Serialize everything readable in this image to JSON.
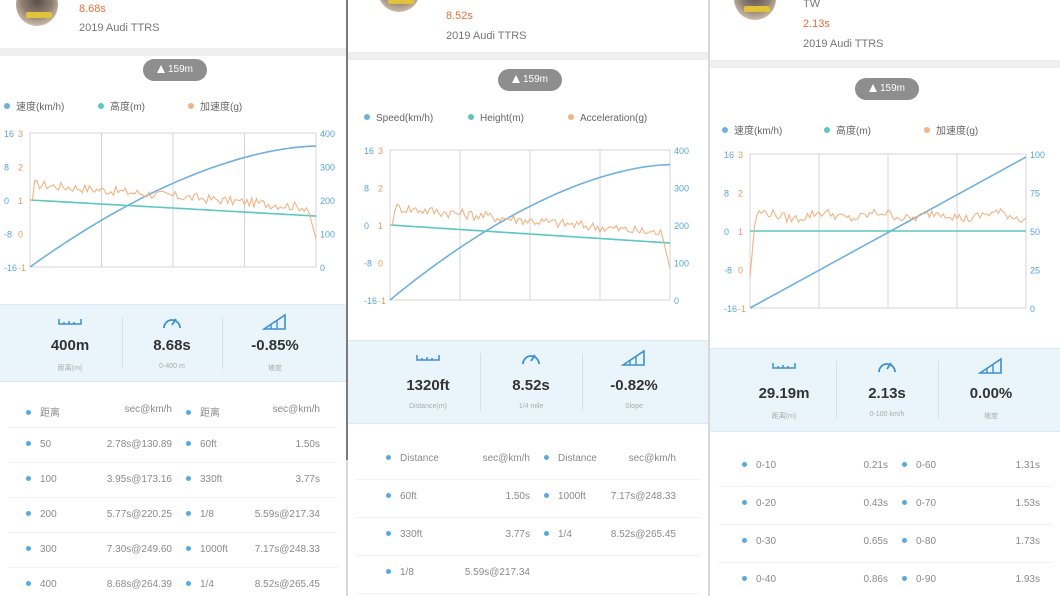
{
  "colors": {
    "speed": "#6fb0dd",
    "height": "#5cc6c1",
    "accel": "#f0b485",
    "time": "#e8703a"
  },
  "panels": [
    {
      "header": {
        "time": "8.68s",
        "car": "2019 Audi TTRS",
        "tw": ""
      },
      "altitude": "159m",
      "legend": {
        "speed": "速度(km/h)",
        "height": "高度(m)",
        "accel": "加速度(g)"
      },
      "axes": {
        "speed_ticks": [
          "16",
          "8",
          "0",
          "-8",
          "-16"
        ],
        "accel_ticks": [
          "3",
          "2",
          "1",
          "0",
          "-1"
        ],
        "height_ticks": [
          "400",
          "300",
          "200",
          "100",
          "0"
        ]
      },
      "stats": [
        {
          "value": "400m",
          "label": "距离(m)",
          "icon": "ruler-icon"
        },
        {
          "value": "8.68s",
          "label": "0-400 m",
          "icon": "speedometer-icon"
        },
        {
          "value": "-0.85%",
          "label": "坡度",
          "icon": "slope-icon"
        }
      ],
      "table": {
        "headers": [
          "距离",
          "sec@km/h",
          "距离",
          "sec@km/h"
        ],
        "rows": [
          [
            "50",
            "2.78s@130.89",
            "60ft",
            "1.50s"
          ],
          [
            "100",
            "3.95s@173.16",
            "330ft",
            "3.77s"
          ],
          [
            "200",
            "5.77s@220.25",
            "1/8",
            "5.59s@217.34"
          ],
          [
            "300",
            "7.30s@249.60",
            "1000ft",
            "7.17s@248.33"
          ],
          [
            "400",
            "8.68s@264.39",
            "1/4",
            "8.52s@265.45"
          ]
        ]
      }
    },
    {
      "header": {
        "time": "8.52s",
        "car": "2019 Audi TTRS",
        "tw": ""
      },
      "altitude": "159m",
      "legend": {
        "speed": "Speed(km/h)",
        "height": "Height(m)",
        "accel": "Acceleration(g)"
      },
      "axes": {
        "speed_ticks": [
          "16",
          "8",
          "0",
          "-8",
          "-16"
        ],
        "accel_ticks": [
          "3",
          "2",
          "1",
          "0",
          "-1"
        ],
        "height_ticks": [
          "400",
          "300",
          "200",
          "100",
          "0"
        ]
      },
      "stats": [
        {
          "value": "1320ft",
          "label": "Distance(m)",
          "icon": "ruler-icon"
        },
        {
          "value": "8.52s",
          "label": "1/4 mile",
          "icon": "speedometer-icon"
        },
        {
          "value": "-0.82%",
          "label": "Slope",
          "icon": "slope-icon"
        }
      ],
      "table": {
        "headers": [
          "Distance",
          "sec@km/h",
          "Distance",
          "sec@km/h"
        ],
        "rows": [
          [
            "60ft",
            "1.50s",
            "1000ft",
            "7.17s@248.33"
          ],
          [
            "330ft",
            "3.77s",
            "1/4",
            "8.52s@265.45"
          ],
          [
            "1/8",
            "5.59s@217.34",
            "",
            ""
          ]
        ]
      }
    },
    {
      "header": {
        "time": "2.13s",
        "car": "2019 Audi TTRS",
        "tw": "TW"
      },
      "altitude": "159m",
      "legend": {
        "speed": "速度(km/h)",
        "height": "高度(m)",
        "accel": "加速度(g)"
      },
      "axes": {
        "speed_ticks": [
          "16",
          "8",
          "0",
          "-8",
          "-16"
        ],
        "accel_ticks": [
          "3",
          "2",
          "1",
          "0",
          "-1"
        ],
        "height_ticks": [
          "100",
          "75",
          "50",
          "25",
          "0"
        ]
      },
      "stats": [
        {
          "value": "29.19m",
          "label": "距离(m)",
          "icon": "ruler-icon"
        },
        {
          "value": "2.13s",
          "label": "0-100 km/h",
          "icon": "speedometer-icon"
        },
        {
          "value": "0.00%",
          "label": "坡度",
          "icon": "slope-icon"
        }
      ],
      "table": {
        "headers": [],
        "rows": [
          [
            "0-10",
            "0.21s",
            "0-60",
            "1.31s"
          ],
          [
            "0-20",
            "0.43s",
            "0-70",
            "1.53s"
          ],
          [
            "0-30",
            "0.65s",
            "0-80",
            "1.73s"
          ],
          [
            "0-40",
            "0.86s",
            "0-90",
            "1.93s"
          ]
        ]
      }
    }
  ]
}
